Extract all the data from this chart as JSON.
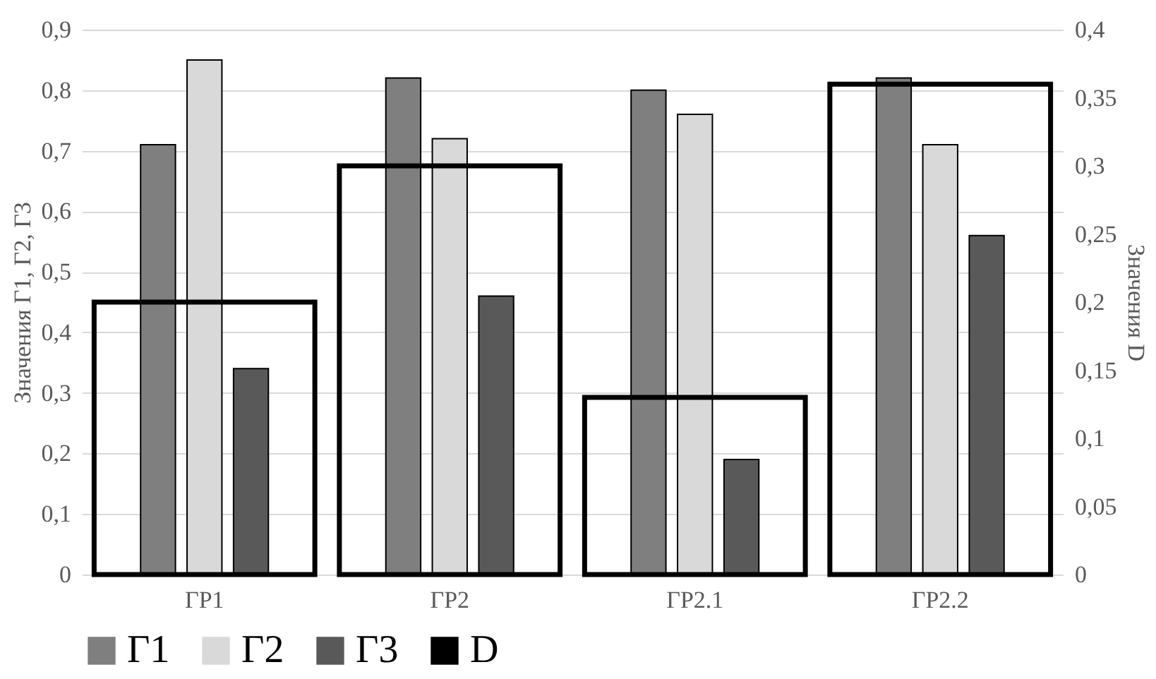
{
  "chart_data": {
    "type": "bar",
    "categories": [
      "ГР1",
      "ГР2",
      "ГР2.1",
      "ГР2.2"
    ],
    "ylabel": "Значения  Г1, Г2, Г3",
    "y2label": "Значения D",
    "ylim": [
      0,
      0.9
    ],
    "yticks": [
      {
        "value": 0,
        "label": "0"
      },
      {
        "value": 0.1,
        "label": "0,1"
      },
      {
        "value": 0.2,
        "label": "0,2"
      },
      {
        "value": 0.3,
        "label": "0,3"
      },
      {
        "value": 0.4,
        "label": "0,4"
      },
      {
        "value": 0.5,
        "label": "0,5"
      },
      {
        "value": 0.6,
        "label": "0,6"
      },
      {
        "value": 0.7,
        "label": "0,7"
      },
      {
        "value": 0.8,
        "label": "0,8"
      },
      {
        "value": 0.9,
        "label": "0,9"
      }
    ],
    "y2lim": [
      0,
      0.4
    ],
    "y2ticks": [
      {
        "value": 0,
        "label": "0"
      },
      {
        "value": 0.05,
        "label": "0,05"
      },
      {
        "value": 0.1,
        "label": "0,1"
      },
      {
        "value": 0.15,
        "label": "0,15"
      },
      {
        "value": 0.2,
        "label": "0,2"
      },
      {
        "value": 0.25,
        "label": "0,25"
      },
      {
        "value": 0.3,
        "label": "0,3"
      },
      {
        "value": 0.35,
        "label": "0,35"
      },
      {
        "value": 0.4,
        "label": "0,4"
      }
    ],
    "series": [
      {
        "name": "Г1",
        "color": "#7f7f7f",
        "values": [
          0.71,
          0.82,
          0.8,
          0.82
        ]
      },
      {
        "name": "Г2",
        "color": "#d9d9d9",
        "values": [
          0.85,
          0.72,
          0.76,
          0.71
        ]
      },
      {
        "name": "Г3",
        "color": "#595959",
        "values": [
          0.34,
          0.46,
          0.19,
          0.56
        ]
      },
      {
        "name": "D",
        "color": "#000000",
        "axis": "y2",
        "values": [
          0.2,
          0.3,
          0.13,
          0.36
        ]
      }
    ],
    "grid": "y",
    "legend": "bottom"
  }
}
